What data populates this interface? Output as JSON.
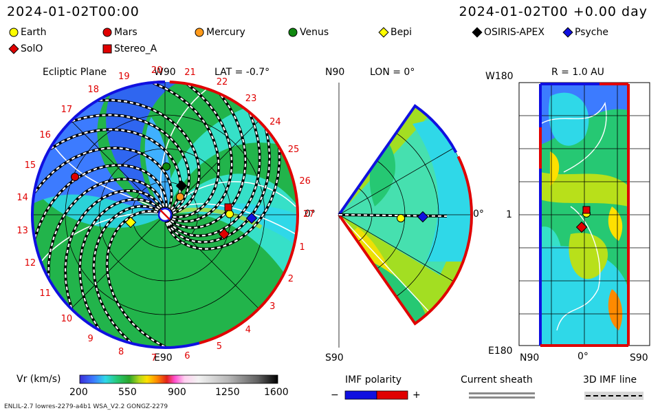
{
  "header": {
    "time_left": "2024-01-02T00:00",
    "time_right": "2024-01-02T00 +0.00 day"
  },
  "legend": [
    {
      "name": "Earth",
      "shape": "circle",
      "color": "#ffff00"
    },
    {
      "name": "Mars",
      "shape": "circle",
      "color": "#e00000"
    },
    {
      "name": "Mercury",
      "shape": "circle",
      "color": "#ff9a1a"
    },
    {
      "name": "Venus",
      "shape": "circle",
      "color": "#108810"
    },
    {
      "name": "Bepi",
      "shape": "diamond",
      "color": "#ffff00"
    },
    {
      "name": "OSIRIS-APEX",
      "shape": "diamond",
      "color": "#000000"
    },
    {
      "name": "Psyche",
      "shape": "diamond",
      "color": "#1010e0"
    },
    {
      "name": "SolO",
      "shape": "diamond",
      "color": "#e00000"
    },
    {
      "name": "Stereo_A",
      "shape": "square",
      "color": "#e00000"
    }
  ],
  "ecliptic": {
    "title": "Ecliptic Plane",
    "lat_label": "LAT = -0.7°",
    "top_label": "W90",
    "bottom_label": "E90",
    "right_label": "0°",
    "carrington_rotations": [
      "1",
      "2",
      "3",
      "4",
      "5",
      "6",
      "7",
      "8",
      "9",
      "10",
      "11",
      "12",
      "13",
      "14",
      "15",
      "16",
      "17",
      "18",
      "19",
      "20",
      "21",
      "22",
      "23",
      "24",
      "25",
      "26",
      "27"
    ]
  },
  "meridional": {
    "lon_label": "LON = 0°",
    "top_label": "N90",
    "bottom_label": "S90",
    "right_label": "0°"
  },
  "radial": {
    "title": "R = 1.0 AU",
    "top_left_label": "W180",
    "middle_left_label": "1",
    "bottom_left_label": "E180",
    "bottom_labels": [
      "N90",
      "0°",
      "S90"
    ]
  },
  "colorbar": {
    "label": "Vr (km/s)",
    "ticks": [
      "200",
      "550",
      "900",
      "1250",
      "1600"
    ]
  },
  "imf_polarity": {
    "label": "IMF polarity",
    "minus": "−",
    "plus": "+"
  },
  "current_sheath": {
    "label": "Current sheath"
  },
  "imf_line": {
    "label": "3D IMF line"
  },
  "footer": {
    "left": "ENLIL-2.7 lowres-2279-a4b1 WSA_V2.2 GONGZ-2279"
  },
  "chart_data": {
    "type": "heatmap",
    "variable": "Vr (km/s)",
    "scale_range": [
      200,
      1600
    ],
    "scale_ticks": [
      200,
      550,
      900,
      1250,
      1600
    ],
    "timestamp": "2024-01-02T00:00",
    "ecliptic_latitude_deg": -0.7,
    "meridional_longitude_deg": 0,
    "radial_distance_au": 1.0
  }
}
